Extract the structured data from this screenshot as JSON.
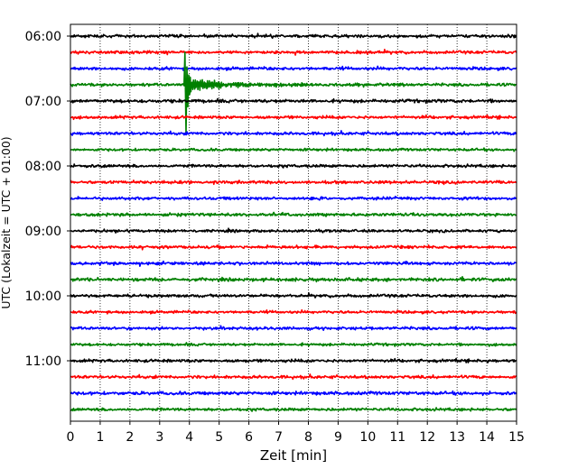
{
  "chart_data": {
    "type": "line",
    "subtype": "helicorder-dayplot",
    "xlabel": "Zeit  [min]",
    "ylabel": "UTC (Lokalzeit = UTC + 01:00)",
    "xlim": [
      0,
      15
    ],
    "x_ticks": [
      "0",
      "1",
      "2",
      "3",
      "4",
      "5",
      "6",
      "7",
      "8",
      "9",
      "10",
      "11",
      "12",
      "13",
      "14",
      "15"
    ],
    "minutes_per_row": 15,
    "y_ticks": [
      {
        "label": "06:00",
        "row": 0
      },
      {
        "label": "07:00",
        "row": 4
      },
      {
        "label": "08:00",
        "row": 8
      },
      {
        "label": "09:00",
        "row": 12
      },
      {
        "label": "10:00",
        "row": 16
      },
      {
        "label": "11:00",
        "row": 20
      }
    ],
    "vertical_grid": "dotted, every 1 min",
    "row_colors": [
      "#000000",
      "#ff0000",
      "#0000ff",
      "#008000"
    ],
    "rows": [
      {
        "start": "06:00",
        "noise": 0.45
      },
      {
        "start": "06:15",
        "noise": 0.45
      },
      {
        "start": "06:30",
        "noise": 0.45
      },
      {
        "start": "06:45",
        "noise": 0.45
      },
      {
        "start": "07:00",
        "noise": 0.5
      },
      {
        "start": "07:15",
        "noise": 0.45
      },
      {
        "start": "07:30",
        "noise": 0.45
      },
      {
        "start": "07:45",
        "noise": 0.4
      },
      {
        "start": "08:00",
        "noise": 0.45
      },
      {
        "start": "08:15",
        "noise": 0.45
      },
      {
        "start": "08:30",
        "noise": 0.45
      },
      {
        "start": "08:45",
        "noise": 0.45
      },
      {
        "start": "09:00",
        "noise": 0.4
      },
      {
        "start": "09:15",
        "noise": 0.45
      },
      {
        "start": "09:30",
        "noise": 0.45
      },
      {
        "start": "09:45",
        "noise": 0.5
      },
      {
        "start": "10:00",
        "noise": 0.45
      },
      {
        "start": "10:15",
        "noise": 0.4
      },
      {
        "start": "10:30",
        "noise": 0.45
      },
      {
        "start": "10:45",
        "noise": 0.4
      },
      {
        "start": "11:00",
        "noise": 0.45
      },
      {
        "start": "11:15",
        "noise": 0.45
      },
      {
        "start": "11:30",
        "noise": 0.5
      },
      {
        "start": "11:45",
        "noise": 0.45
      }
    ],
    "events": [
      {
        "row": 3,
        "minute": 3.85,
        "peak_up_rows": 2.0,
        "peak_down_rows": 3.0,
        "coda_minutes": 7.5
      }
    ]
  }
}
